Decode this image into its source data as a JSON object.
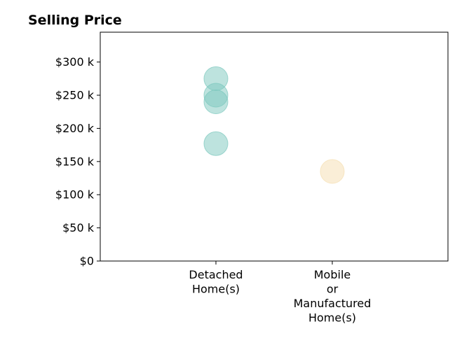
{
  "chart_data": {
    "type": "scatter",
    "title": "Selling Price",
    "xlabel": "",
    "ylabel": "",
    "categories": [
      [
        "Detached",
        "Home(s)"
      ],
      [
        "Mobile",
        "or",
        "Manufactured",
        "Home(s)"
      ]
    ],
    "ylim": [
      0,
      345000
    ],
    "yticks": [
      0,
      50000,
      100000,
      150000,
      200000,
      250000,
      300000
    ],
    "ytick_labels": [
      "$0",
      "$50 k",
      "$100 k",
      "$150 k",
      "$200 k",
      "$250 k",
      "$300 k"
    ],
    "grid": false,
    "series": [
      {
        "category_index": 0,
        "color": "#7bc8bd",
        "values": [
          275000,
          250000,
          240000,
          177000
        ]
      },
      {
        "category_index": 1,
        "color": "#f5deb0",
        "values": [
          135000
        ]
      }
    ]
  }
}
